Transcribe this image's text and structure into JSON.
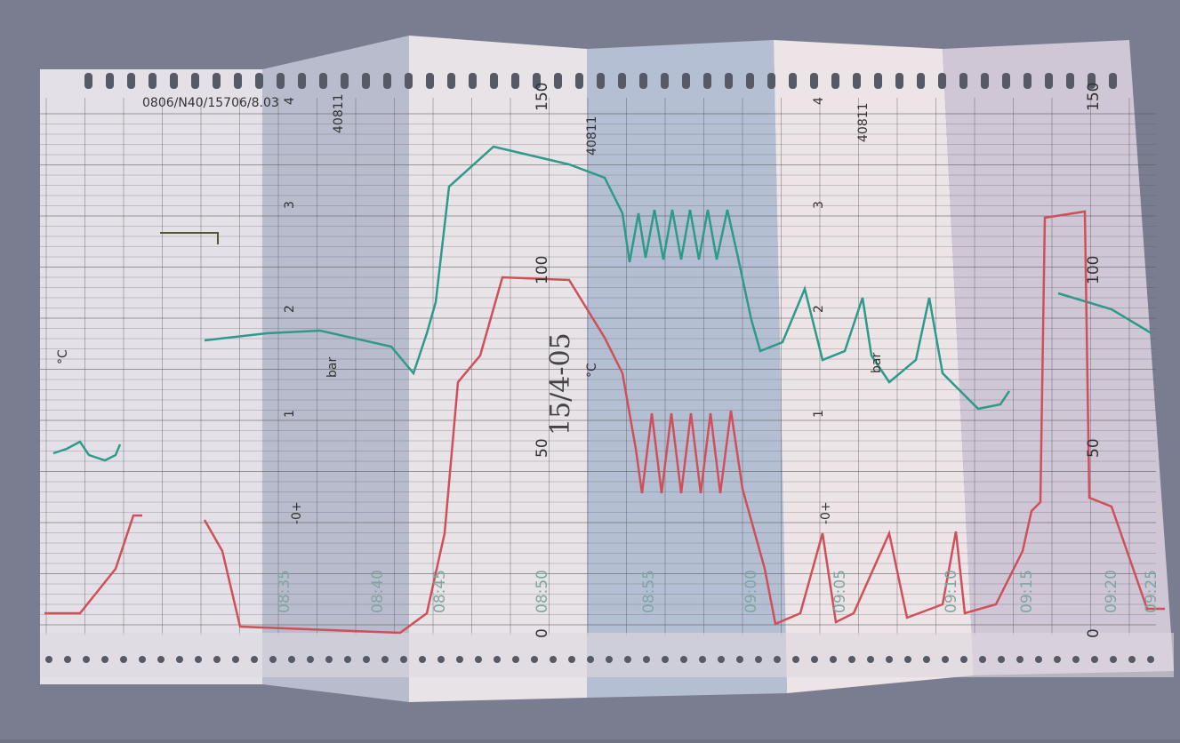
{
  "paper": {
    "code": "0806/N40/15706/8.03",
    "serials": [
      "40811",
      "40811",
      "40811"
    ],
    "pressure_unit": "bar",
    "temperature_unit": "°C",
    "pressure_scale": [
      "4",
      "3",
      "2",
      "1",
      "-0+"
    ],
    "temperature_scale": [
      "150",
      "100",
      "50",
      "0"
    ],
    "time_marks": [
      "09:25",
      "09:20",
      "09:15",
      "09:10",
      "09:05",
      "09:00",
      "08:55",
      "08:50",
      "08:45",
      "08:40",
      "08:35"
    ],
    "handwriting": "15/4-05"
  }
}
